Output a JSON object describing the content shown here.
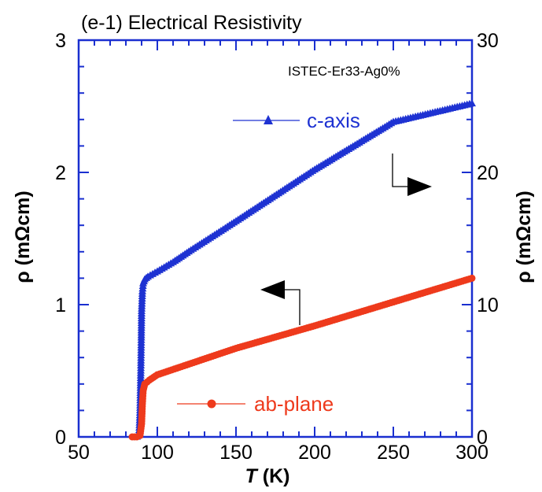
{
  "chart_data": {
    "type": "line",
    "title": "(e-1) Electrical Resistivity",
    "annotation": "ISTEC-Er33-Ag0%",
    "xlabel_italic": "T",
    "xlabel_unit": " (K)",
    "ylabel_left": "ρ (mΩcm)",
    "ylabel_right": "ρ (mΩcm)",
    "xlim": [
      50,
      300
    ],
    "ylim_left": [
      0,
      3
    ],
    "ylim_right": [
      0,
      30
    ],
    "x_ticks": [
      "50",
      "100",
      "150",
      "200",
      "250",
      "300"
    ],
    "y_ticks_left": [
      "0",
      "1",
      "2",
      "3"
    ],
    "y_ticks_right": [
      "0",
      "10",
      "20",
      "30"
    ],
    "axis_color": "#1a2fd0",
    "series": [
      {
        "name": "c-axis",
        "axis": "right",
        "color": "#1e32d2",
        "marker": "triangle",
        "points": [
          [
            87,
            0
          ],
          [
            88,
            0.1
          ],
          [
            88.5,
            0.5
          ],
          [
            89,
            2
          ],
          [
            89.5,
            5
          ],
          [
            89.8,
            7.5
          ],
          [
            90,
            9.5
          ],
          [
            90.5,
            11
          ],
          [
            91,
            11.6
          ],
          [
            92,
            11.9
          ],
          [
            94,
            12.1
          ],
          [
            97,
            12.3
          ],
          [
            100,
            12.5
          ],
          [
            110,
            13.2
          ],
          [
            120,
            14.0
          ],
          [
            150,
            16.3
          ],
          [
            200,
            20.2
          ],
          [
            250,
            23.8
          ],
          [
            300,
            25.2
          ]
        ]
      },
      {
        "name": "ab-plane",
        "axis": "left",
        "color": "#ee3a1c",
        "marker": "circle",
        "points": [
          [
            84,
            0
          ],
          [
            87,
            0
          ],
          [
            89,
            0.01
          ],
          [
            90,
            0.1
          ],
          [
            90.5,
            0.25
          ],
          [
            91,
            0.35
          ],
          [
            92,
            0.4
          ],
          [
            95,
            0.43
          ],
          [
            100,
            0.47
          ],
          [
            120,
            0.55
          ],
          [
            150,
            0.67
          ],
          [
            200,
            0.84
          ],
          [
            250,
            1.02
          ],
          [
            300,
            1.2
          ]
        ]
      }
    ],
    "legend": [
      {
        "label": "c-axis",
        "color": "#1e32d2",
        "marker": "triangle"
      },
      {
        "label": "ab-plane",
        "color": "#ee3a1c",
        "marker": "circle"
      }
    ]
  }
}
